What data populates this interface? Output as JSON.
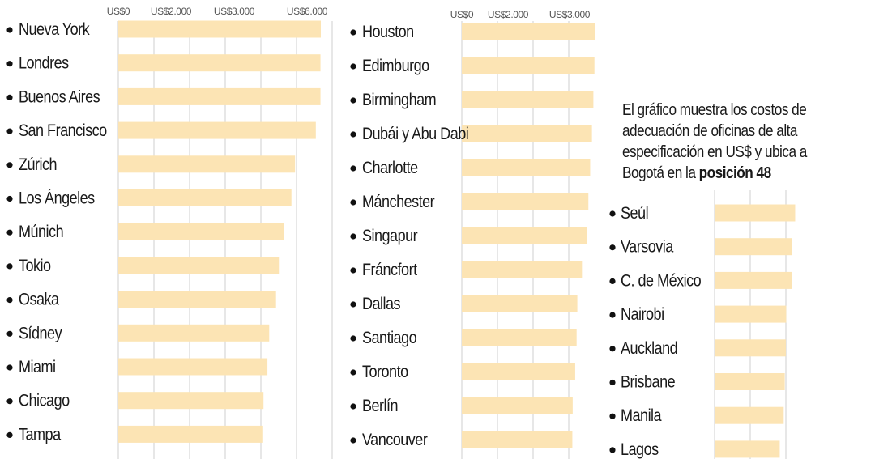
{
  "chart_data": [
    {
      "type": "bar",
      "orientation": "horizontal",
      "currency": "US$",
      "ticks": [
        "US$0",
        "US$2.000",
        "US$3.000",
        "US$6.000"
      ],
      "categories": [
        "Nueva York",
        "Londres",
        "Buenos Aires",
        "San Francisco",
        "Zúrich",
        "Los Ángeles",
        "Múnich",
        "Tokio",
        "Osaka",
        "Sídney",
        "Miami",
        "Chicago",
        "Tampa"
      ],
      "values": [
        5650,
        5640,
        5640,
        5510,
        4930,
        4830,
        4620,
        4480,
        4400,
        4210,
        4160,
        4050,
        4040
      ],
      "grid": true,
      "bar_color": "#FCE4B4"
    },
    {
      "type": "bar",
      "orientation": "horizontal",
      "currency": "US$",
      "ticks": [
        "US$0",
        "US$2.000",
        "US$3.000"
      ],
      "categories": [
        "Houston",
        "Edimburgo",
        "Birmingham",
        "Dubái y Abu Dabi",
        "Charlotte",
        "Mánchester",
        "Singapur",
        "Fráncfort",
        "Dallas",
        "Santiago",
        "Toronto",
        "Berlín",
        "Vancouver"
      ],
      "values": [
        3730,
        3720,
        3690,
        3650,
        3600,
        3550,
        3500,
        3370,
        3240,
        3220,
        3180,
        3110,
        3100
      ],
      "grid": true,
      "bar_color": "#FCE4B4"
    },
    {
      "type": "bar",
      "orientation": "horizontal",
      "currency": "US$",
      "categories": [
        "Seúl",
        "Varsovia",
        "C. de México",
        "Nairobi",
        "Auckland",
        "Brisbane",
        "Manila",
        "Lagos"
      ],
      "values": [
        2250,
        2160,
        2150,
        2000,
        1990,
        1960,
        1930,
        1820
      ],
      "grid": true,
      "bar_color": "#FCE4B4"
    }
  ],
  "note": {
    "text": "El gráfico muestra los costos de adecuación de oficinas de alta especificación en US$ y ubica a Bogotá en la ",
    "highlight": "posición 48"
  }
}
